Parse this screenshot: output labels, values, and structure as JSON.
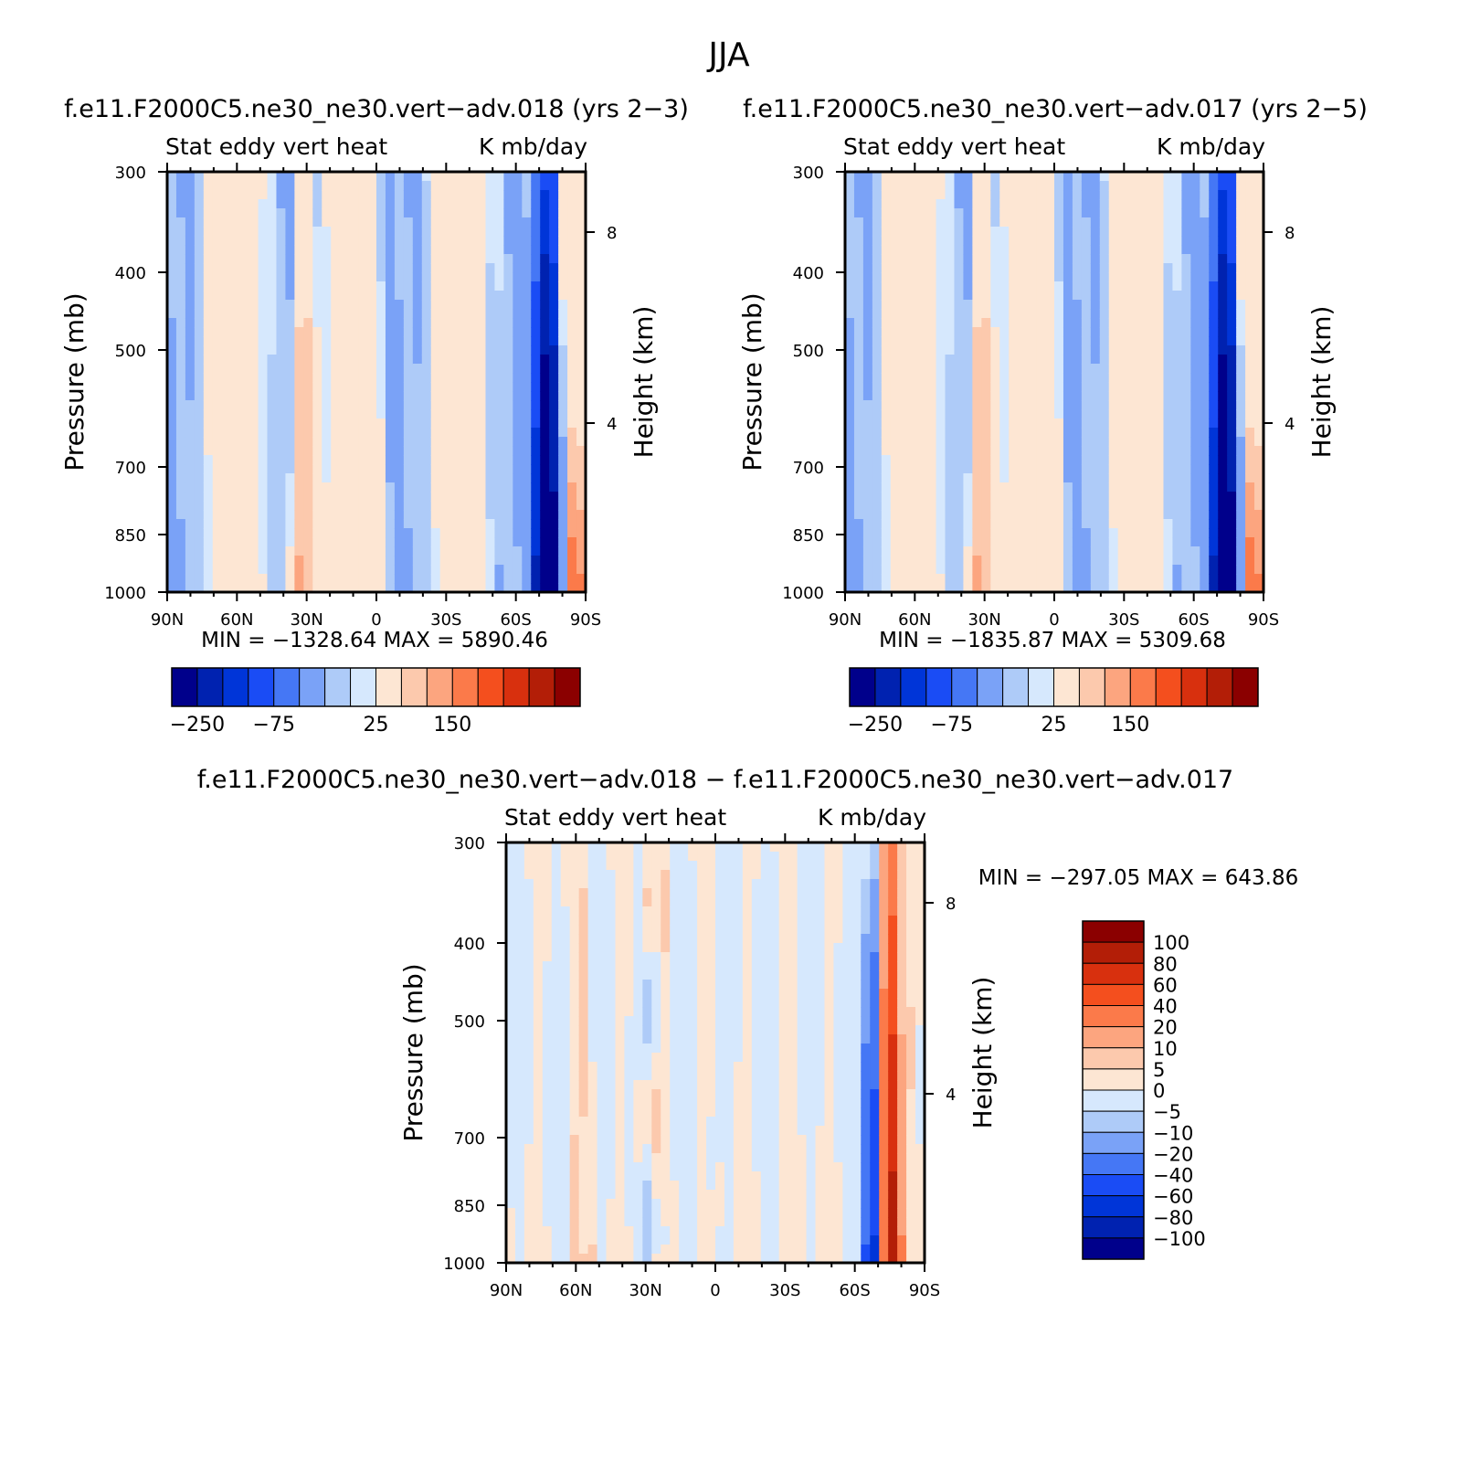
{
  "page_title": "JJA",
  "colors": {
    "field_diverging": [
      "#00008b",
      "#0022b0",
      "#0035d8",
      "#1a4cf5",
      "#4577f5",
      "#7aa2f7",
      "#aecbf8",
      "#d6e8fd",
      "#fde6d3",
      "#fcc9ad",
      "#fca57f",
      "#fb7a4a",
      "#f44f1e",
      "#d8300e",
      "#b31e07",
      "#8b0000"
    ],
    "diff_diverging": [
      "#00008b",
      "#0022b0",
      "#0035d8",
      "#1a4cf5",
      "#4577f5",
      "#7aa2f7",
      "#aecbf8",
      "#d6e8fd",
      "#fde6d3",
      "#fcc9ad",
      "#fca57f",
      "#fb7a4a",
      "#f44f1e",
      "#d8300e",
      "#b31e07",
      "#8b0000"
    ]
  },
  "chart_data": [
    {
      "type": "heatmap",
      "case_title": "f.e11.F2000C5.ne30_ne30.vert−adv.018 (yrs 2−3)",
      "title_left": "Stat eddy vert heat",
      "title_right": "K mb/day",
      "ylabel": "Pressure (mb)",
      "ylabel_right": "Height (km)",
      "x_ticks": [
        "90N",
        "60N",
        "30N",
        "0",
        "30S",
        "60S",
        "90S"
      ],
      "y_ticks": [
        "300",
        "400",
        "500",
        "700",
        "850",
        "1000"
      ],
      "y_ticks_right": [
        "8",
        "4"
      ],
      "xlim": [
        "90N",
        "90S"
      ],
      "ylim": [
        1000,
        300
      ],
      "y_scale": "log",
      "stats": "MIN = −1328.64   MAX = 5890.46",
      "colorbar": {
        "labels": [
          "−250",
          "−75",
          "25",
          "150"
        ],
        "n_colors": 16,
        "orientation": "horizontal"
      }
    },
    {
      "type": "heatmap",
      "case_title": "f.e11.F2000C5.ne30_ne30.vert−adv.017 (yrs 2−5)",
      "title_left": "Stat eddy vert heat",
      "title_right": "K mb/day",
      "ylabel": "Pressure (mb)",
      "ylabel_right": "Height (km)",
      "x_ticks": [
        "90N",
        "60N",
        "30N",
        "0",
        "30S",
        "60S",
        "90S"
      ],
      "y_ticks": [
        "300",
        "400",
        "500",
        "700",
        "850",
        "1000"
      ],
      "y_ticks_right": [
        "8",
        "4"
      ],
      "xlim": [
        "90N",
        "90S"
      ],
      "ylim": [
        1000,
        300
      ],
      "y_scale": "log",
      "stats": "MIN = −1835.87   MAX = 5309.68",
      "colorbar": {
        "labels": [
          "−250",
          "−75",
          "25",
          "150"
        ],
        "n_colors": 16,
        "orientation": "horizontal"
      }
    },
    {
      "type": "heatmap",
      "case_title": "f.e11.F2000C5.ne30_ne30.vert−adv.018 − f.e11.F2000C5.ne30_ne30.vert−adv.017",
      "title_left": "Stat eddy vert heat",
      "title_right": "K mb/day",
      "ylabel": "Pressure (mb)",
      "ylabel_right": "Height (km)",
      "x_ticks": [
        "90N",
        "60N",
        "30N",
        "0",
        "30S",
        "60S",
        "90S"
      ],
      "y_ticks": [
        "300",
        "400",
        "500",
        "700",
        "850",
        "1000"
      ],
      "y_ticks_right": [
        "8",
        "4"
      ],
      "xlim": [
        "90N",
        "90S"
      ],
      "ylim": [
        1000,
        300
      ],
      "y_scale": "log",
      "stats": "MIN = −297.05   MAX = 643.86",
      "colorbar": {
        "labels": [
          "100",
          "80",
          "60",
          "40",
          "20",
          "10",
          "5",
          "0",
          "−5",
          "−10",
          "−20",
          "−40",
          "−60",
          "−80",
          "−100"
        ],
        "n_colors": 16,
        "orientation": "vertical"
      }
    }
  ]
}
